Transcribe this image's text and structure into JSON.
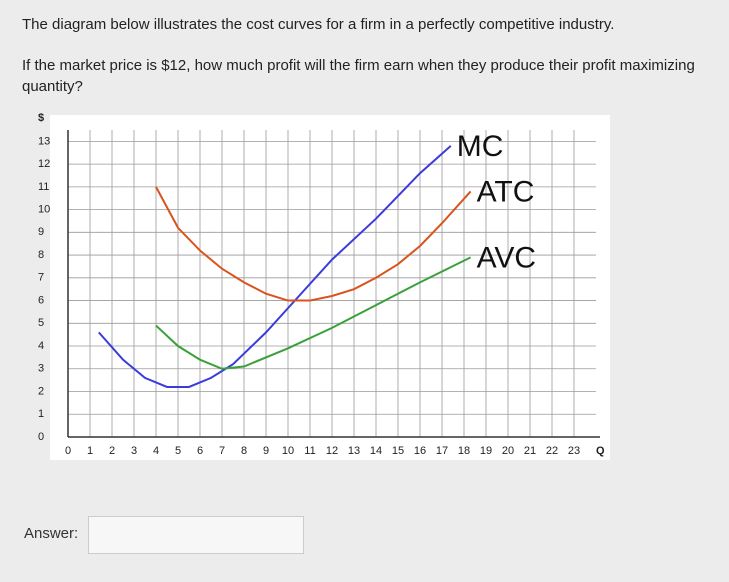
{
  "question": [
    "The diagram below illustrates the cost curves for a firm in a perfectly competitive industry.",
    "If the market price is $12, how much profit will the firm earn when they produce their profit maximizing quantity?"
  ],
  "answer_label": "Answer:",
  "chart_data": {
    "type": "line",
    "y_label": "$",
    "x_label": "Q",
    "xlim": [
      0,
      24
    ],
    "ylim": [
      0,
      13.5
    ],
    "xticks": [
      0,
      1,
      2,
      3,
      4,
      5,
      6,
      7,
      8,
      9,
      10,
      11,
      12,
      13,
      14,
      15,
      16,
      17,
      18,
      19,
      20,
      21,
      22,
      23
    ],
    "yticks": [
      0,
      1,
      2,
      3,
      4,
      5,
      6,
      7,
      8,
      9,
      10,
      11,
      12,
      13
    ],
    "grid": true,
    "series": [
      {
        "name": "MC",
        "color": "#3b3bdc",
        "x": [
          1.4,
          2.5,
          3.5,
          4.5,
          5.5,
          6.5,
          7.5,
          9,
          10.5,
          12,
          14,
          16,
          17.4
        ],
        "values": [
          4.6,
          3.4,
          2.6,
          2.2,
          2.2,
          2.6,
          3.2,
          4.6,
          6.2,
          7.8,
          9.6,
          11.6,
          12.8
        ]
      },
      {
        "name": "ATC",
        "color": "#d9531e",
        "x": [
          4,
          5,
          6,
          7,
          8,
          9,
          10,
          11,
          12,
          13,
          14,
          15,
          16,
          17,
          18.3
        ],
        "values": [
          11,
          9.2,
          8.2,
          7.4,
          6.8,
          6.3,
          6.0,
          6.0,
          6.2,
          6.5,
          7.0,
          7.6,
          8.4,
          9.4,
          10.8
        ]
      },
      {
        "name": "AVC",
        "color": "#3aa03a",
        "x": [
          4,
          5,
          6,
          7,
          8,
          10,
          12,
          14,
          16,
          18.3
        ],
        "values": [
          4.9,
          4.0,
          3.4,
          3.0,
          3.1,
          3.9,
          4.8,
          5.8,
          6.8,
          7.9
        ]
      }
    ]
  }
}
